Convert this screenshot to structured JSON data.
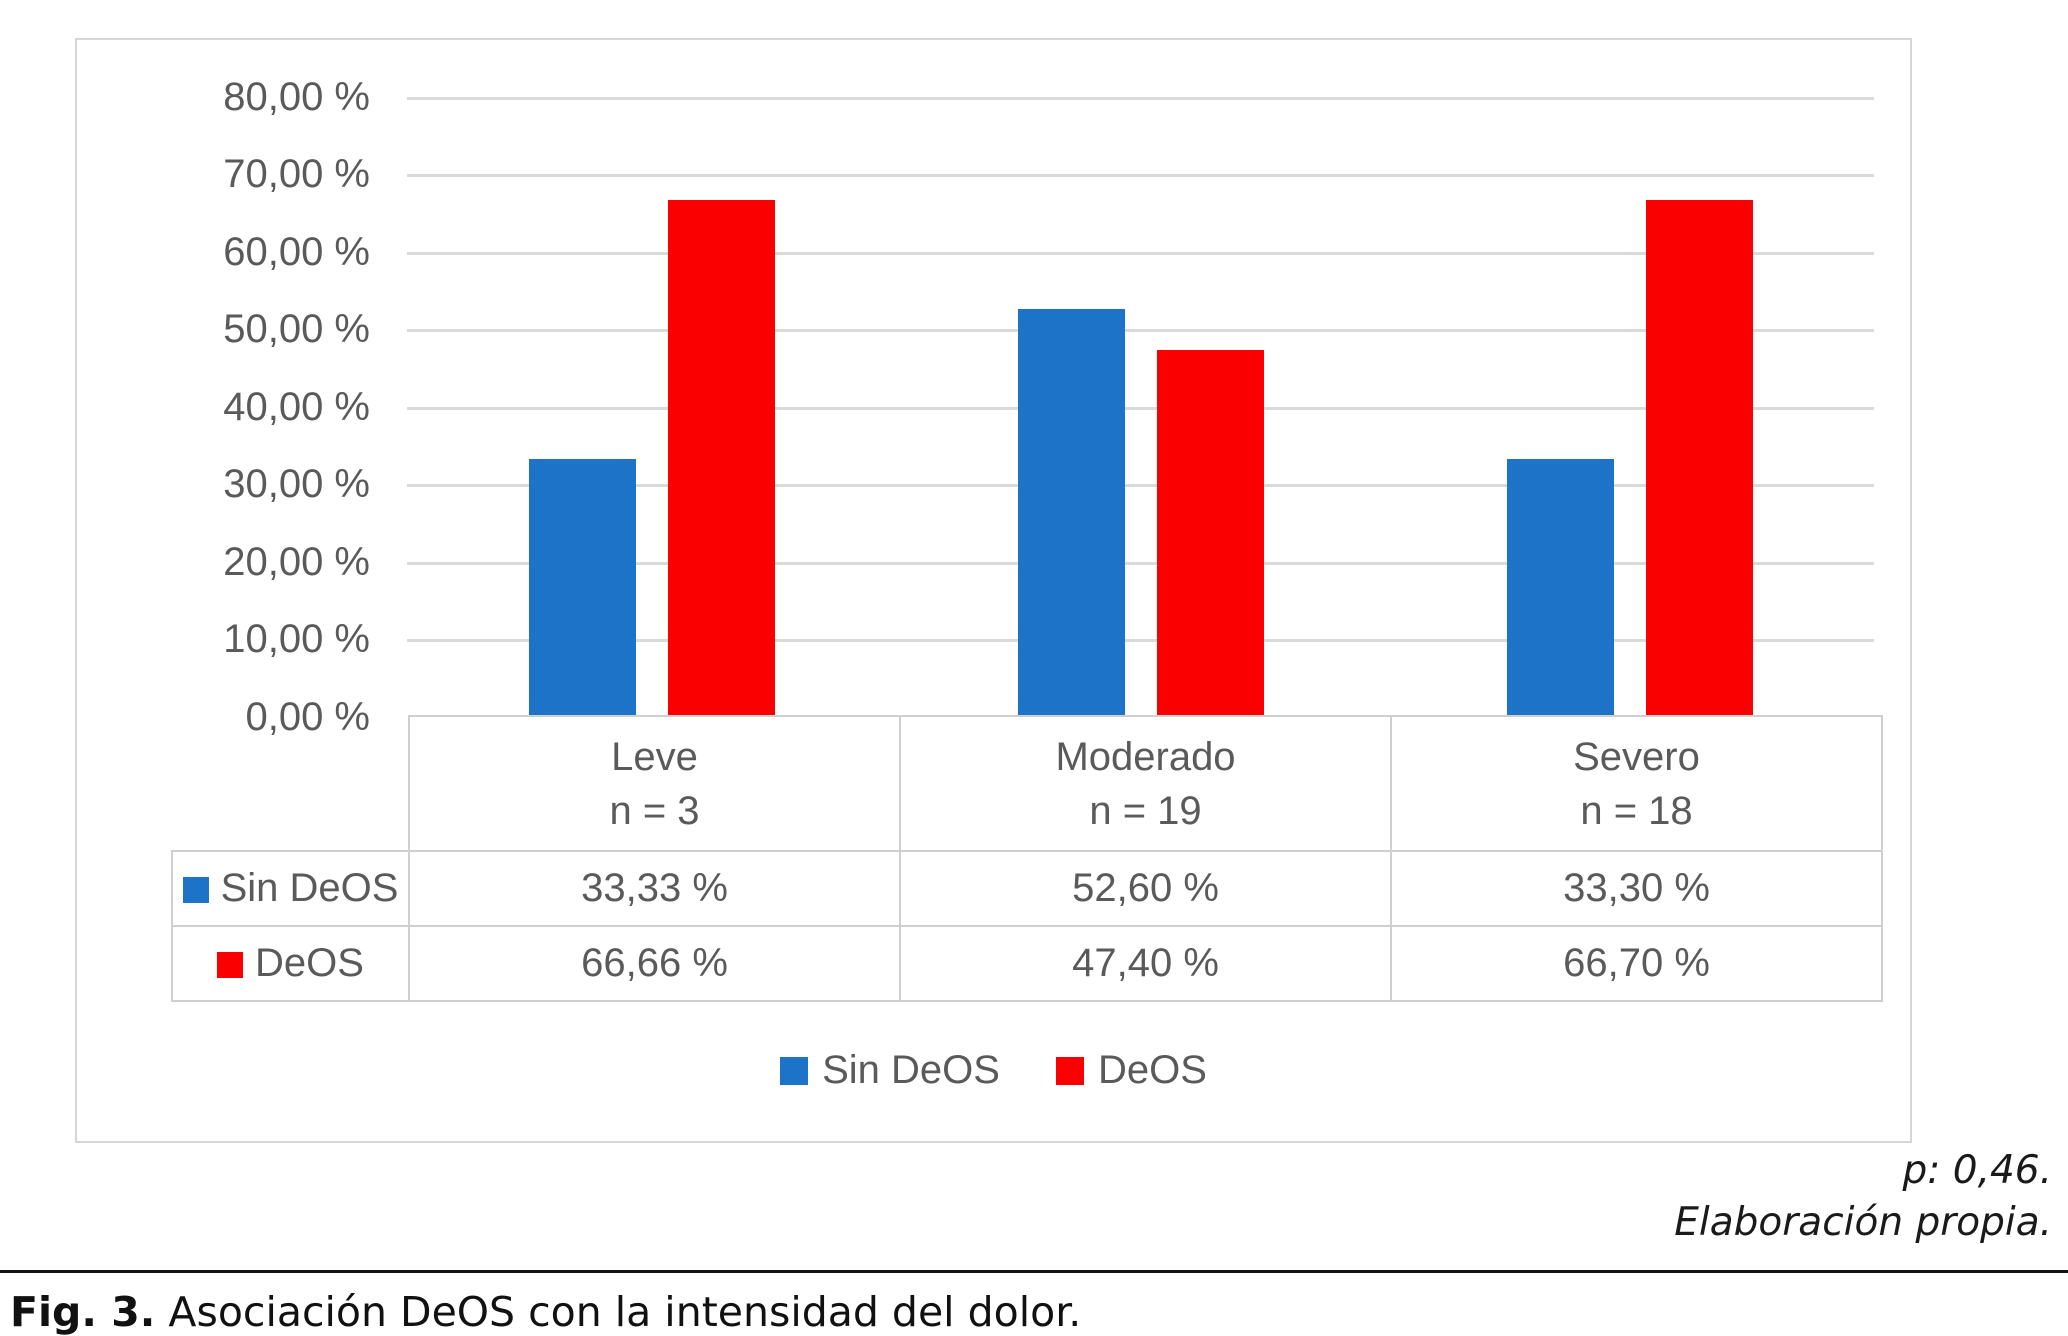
{
  "chart_data": {
    "type": "bar",
    "categories": [
      "Leve",
      "Moderado",
      "Severo"
    ],
    "category_sublabels": [
      "n = 3",
      "n = 19",
      "n = 18"
    ],
    "series": [
      {
        "name": "Sin DeOS",
        "color": "#1c73c7",
        "values": [
          33.33,
          52.6,
          33.3
        ],
        "display_values": [
          "33,33 %",
          "52,60 %",
          "33,30 %"
        ]
      },
      {
        "name": "DeOS",
        "color": "#fb0000",
        "values": [
          66.66,
          47.4,
          66.7
        ],
        "display_values": [
          "66,66 %",
          "47,40 %",
          "66,70 %"
        ]
      }
    ],
    "y_ticks": [
      "80,00 %",
      "70,00 %",
      "60,00 %",
      "50,00 %",
      "40,00 %",
      "30,00 %",
      "20,00 %",
      "10,00 %",
      "0,00 %"
    ],
    "ylim": [
      0,
      80
    ],
    "grid": true,
    "legend_position": "bottom",
    "data_table_shown": true
  },
  "notes": {
    "p_value": "p: 0,46.",
    "source": "Elaboración propia."
  },
  "caption": {
    "fig_label": "Fig. 3.",
    "text": " Asociación DeOS con la intensidad del dolor."
  }
}
